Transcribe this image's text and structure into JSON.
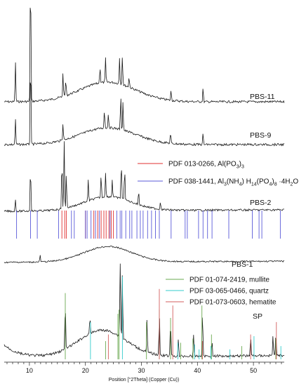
{
  "chart_data": {
    "type": "line",
    "title": "",
    "xlabel": "Position [°2Theta] (Copper (Cu))",
    "ylabel": "",
    "xlim": [
      5.5,
      55.5
    ],
    "x_ticks": [
      10,
      20,
      30,
      40,
      50
    ],
    "grid": false,
    "series": [
      {
        "name": "PBS-11",
        "peaks": [
          {
            "x": 7.5,
            "intensity": 60
          },
          {
            "x": 10.2,
            "intensity": 205
          },
          {
            "x": 16.0,
            "intensity": 35
          },
          {
            "x": 16.5,
            "intensity": 25
          },
          {
            "x": 22.6,
            "intensity": 25
          },
          {
            "x": 23.6,
            "intensity": 35
          },
          {
            "x": 26.1,
            "intensity": 38
          },
          {
            "x": 26.6,
            "intensity": 45
          },
          {
            "x": 27.8,
            "intensity": 16
          },
          {
            "x": 35.3,
            "intensity": 15
          },
          {
            "x": 41.0,
            "intensity": 20
          }
        ]
      },
      {
        "name": "PBS-9",
        "peaks": [
          {
            "x": 7.5,
            "intensity": 38
          },
          {
            "x": 10.2,
            "intensity": 135
          },
          {
            "x": 16.0,
            "intensity": 26
          },
          {
            "x": 23.4,
            "intensity": 28
          },
          {
            "x": 24.1,
            "intensity": 22
          },
          {
            "x": 26.3,
            "intensity": 50
          },
          {
            "x": 26.7,
            "intensity": 42
          },
          {
            "x": 35.2,
            "intensity": 16
          },
          {
            "x": 41.0,
            "intensity": 16
          }
        ]
      },
      {
        "name": "PBS-2",
        "peaks": [
          {
            "x": 7.5,
            "intensity": 18
          },
          {
            "x": 10.2,
            "intensity": 70
          },
          {
            "x": 15.8,
            "intensity": 78
          },
          {
            "x": 16.2,
            "intensity": 100
          },
          {
            "x": 16.6,
            "intensity": 52
          },
          {
            "x": 20.5,
            "intensity": 30
          },
          {
            "x": 22.8,
            "intensity": 34
          },
          {
            "x": 23.6,
            "intensity": 36
          },
          {
            "x": 24.8,
            "intensity": 26
          },
          {
            "x": 26.4,
            "intensity": 58
          },
          {
            "x": 27.0,
            "intensity": 50
          },
          {
            "x": 29.5,
            "intensity": 22
          },
          {
            "x": 33.4,
            "intensity": 12
          }
        ]
      },
      {
        "name": "PBS-1",
        "peaks": [
          {
            "x": 11.9,
            "intensity": 10
          }
        ]
      },
      {
        "name": "SP",
        "peaks": [
          {
            "x": 16.4,
            "intensity": 75
          },
          {
            "x": 20.8,
            "intensity": 25
          },
          {
            "x": 26.2,
            "intensity": 110
          },
          {
            "x": 26.6,
            "intensity": 100
          },
          {
            "x": 31.0,
            "intensity": 48
          },
          {
            "x": 33.2,
            "intensity": 62
          },
          {
            "x": 35.2,
            "intensity": 55
          },
          {
            "x": 36.6,
            "intensity": 25
          },
          {
            "x": 39.3,
            "intensity": 30
          },
          {
            "x": 40.9,
            "intensity": 72
          },
          {
            "x": 42.6,
            "intensity": 22
          },
          {
            "x": 49.5,
            "intensity": 30
          },
          {
            "x": 53.5,
            "intensity": 30
          },
          {
            "x": 54.0,
            "intensity": 36
          }
        ]
      }
    ],
    "reference_patterns": [
      {
        "name": "PDF 013-0266, Al(PO3)3",
        "color": "#e03030",
        "panel": "PBS-2",
        "positions": [
          15.8,
          16.3,
          16.6,
          20.0,
          21.5,
          22.2,
          22.8,
          23.3,
          23.7,
          24.2,
          24.6,
          25.0
        ]
      },
      {
        "name": "PDF 038-1441, Al3(NH4) H14(PO4)8 ·4H2O",
        "color": "#5a5ad8",
        "panel": "PBS-2",
        "positions": [
          7.7,
          10.2,
          11.4,
          15.2,
          17.5,
          18.0,
          20.0,
          20.3,
          21.0,
          21.8,
          22.5,
          24.4,
          25.6,
          26.2,
          26.5,
          27.2,
          27.9,
          28.3,
          29.2,
          29.8,
          30.3,
          31.1,
          31.8,
          32.5,
          33.2,
          35.3,
          37.8,
          38.2,
          40.2,
          41.0,
          41.8,
          42.6,
          45.6,
          49.8,
          51.0,
          51.5,
          54.8
        ]
      },
      {
        "name": "PDF 01-074-2419, mullite",
        "color": "#6aa84f",
        "panel": "SP",
        "positions": [
          16.4,
          23.6,
          25.8,
          26.0,
          30.9,
          33.2,
          35.2,
          37.0,
          39.2,
          40.8,
          42.5,
          47.9,
          54.0
        ],
        "heights": [
          80,
          22,
          55,
          60,
          45,
          60,
          50,
          20,
          25,
          65,
          30,
          16,
          25
        ]
      },
      {
        "name": "PDF 03-065-0466, quartz",
        "color": "#33cccc",
        "panel": "SP",
        "positions": [
          20.9,
          26.6,
          36.5,
          39.5,
          40.3,
          42.4,
          45.8,
          50.1,
          54.9
        ],
        "heights": [
          45,
          100,
          20,
          18,
          12,
          16,
          12,
          28,
          16
        ]
      },
      {
        "name": "PDF 01-073-0603, hematite",
        "color": "#d35f5f",
        "panel": "SP",
        "positions": [
          24.1,
          33.2,
          35.6,
          40.9,
          49.5,
          54.1
        ],
        "heights": [
          30,
          85,
          65,
          22,
          30,
          45
        ]
      }
    ]
  }
}
